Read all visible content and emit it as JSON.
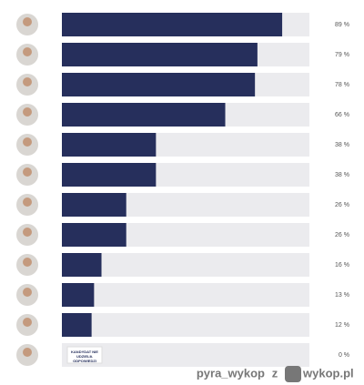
{
  "chart_data": {
    "type": "hbar",
    "categories": [
      null,
      null,
      null,
      null,
      null,
      null,
      null,
      null,
      null,
      null,
      null,
      null
    ],
    "values": [
      89,
      79,
      78,
      66,
      38,
      38,
      26,
      26,
      16,
      13,
      12,
      0
    ],
    "value_labels": [
      "89 %",
      "79 %",
      "78 %",
      "66 %",
      "38 %",
      "38 %",
      "26 %",
      "26 %",
      "16 %",
      "13 %",
      "12 %",
      "0 %"
    ],
    "color": "#262f5c",
    "track_color": "#ebebee",
    "xlim": [
      0,
      100
    ],
    "annotation": "KANDYDAT NIE UDZIELIŁ ODPOWIEDZI"
  },
  "watermark": {
    "user": "pyra_wykop",
    "connector": "z",
    "site": "wykop.pl"
  }
}
